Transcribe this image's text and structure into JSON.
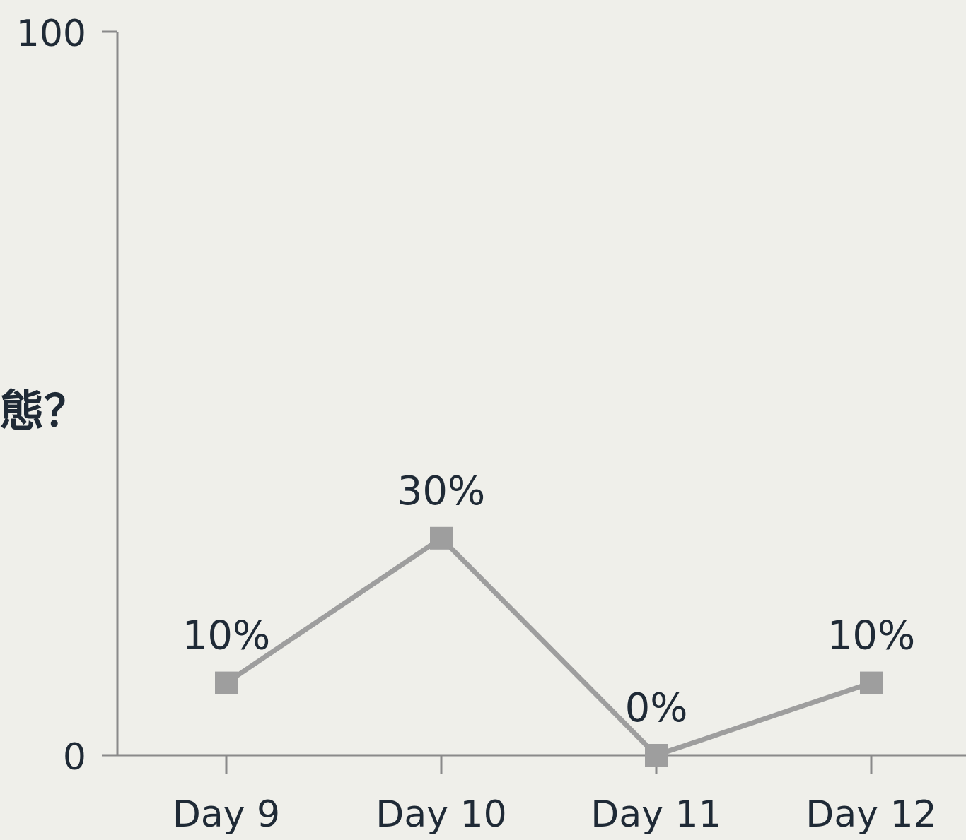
{
  "chart_data": {
    "type": "line",
    "categories": [
      "Day 9",
      "Day 10",
      "Day 11",
      "Day 12"
    ],
    "series": [
      {
        "values": [
          10,
          30,
          0,
          10
        ],
        "data_labels": [
          "10%",
          "30%",
          "0%",
          "10%"
        ],
        "color": "#9e9e9e",
        "marker": "square"
      }
    ],
    "ylabel": "態？",
    "ylim": [
      0,
      100
    ],
    "yticks": [
      0,
      100
    ],
    "ytick_labels": [
      "0",
      "100"
    ],
    "grid": false,
    "legend": "none"
  },
  "colors": {
    "background": "#efefea",
    "axis": "#8a8a8a",
    "text": "#1f2a36",
    "series": "#9e9e9e"
  }
}
